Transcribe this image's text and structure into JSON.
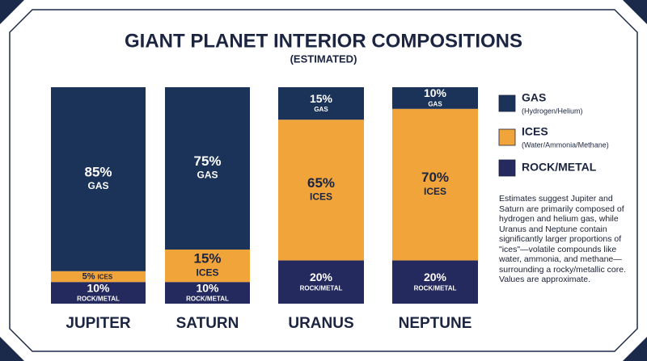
{
  "chart_data": {
    "type": "stacked-bar",
    "title": "GIANT PLANET INTERIOR COMPOSITIONS",
    "subtitle": "(ESTIMATED)",
    "categories": [
      "JUPITER",
      "SATURN",
      "URANUS",
      "NEPTUNE"
    ],
    "ylim": [
      0,
      100
    ],
    "series": [
      {
        "name": "ROCK/METAL",
        "color": "#252a5e",
        "values": [
          10,
          10,
          20,
          20
        ],
        "value_labels": [
          "10%",
          "10%",
          "20%",
          "20%"
        ]
      },
      {
        "name": "ICES",
        "description": "(Water/Ammonia/Methane)",
        "color": "#f0a43a",
        "values": [
          5,
          15,
          65,
          70
        ],
        "value_labels": [
          "5%",
          "15%",
          "65%",
          "70%"
        ]
      },
      {
        "name": "GAS",
        "description": "(Hydrogen/Helium)",
        "color": "#1b3259",
        "values": [
          85,
          75,
          15,
          10
        ],
        "value_labels": [
          "85%",
          "75%",
          "15%",
          "10%"
        ]
      }
    ],
    "note": "Estimates suggest Jupiter and Saturn are primarily composed of hydrogen and helium gas, while Uranus and Neptune contain significantly larger proportions of \"ices\"—volatile compounds like water, ammonia, and methane—surrounding a rocky/metallic core. Values are approximate."
  }
}
